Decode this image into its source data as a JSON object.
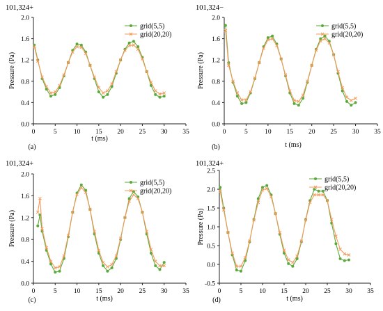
{
  "colors": {
    "green": "#5aaa3a",
    "orange": "#f39a5a"
  },
  "chart_data": [
    {
      "type": "line",
      "title": "101,324+",
      "panel_label": "(a)",
      "xlabel": "t (ms)",
      "ylabel": "Pressure (Pa)",
      "xlim": [
        0,
        35
      ],
      "ylim": [
        0.0,
        2.0
      ],
      "xticks": [
        "0",
        "5",
        "10",
        "15",
        "20",
        "25",
        "30",
        "35"
      ],
      "yticks": [
        "0.0",
        "0.4",
        "0.8",
        "1.2",
        "1.6",
        "2.0"
      ],
      "legend_position": "top-right",
      "series": [
        {
          "name": "grid(5,5)",
          "color": "#5aaa3a",
          "marker": "dot",
          "x": [
            0.2,
            1,
            2,
            3,
            4,
            5,
            6,
            7,
            8,
            9,
            10,
            11,
            12,
            13,
            14,
            15,
            16,
            17,
            18,
            19,
            20,
            21,
            22,
            23,
            24,
            25,
            26,
            27,
            28,
            29,
            30
          ],
          "y": [
            1.48,
            1.2,
            0.85,
            0.65,
            0.52,
            0.55,
            0.68,
            0.9,
            1.15,
            1.38,
            1.5,
            1.48,
            1.35,
            1.1,
            0.85,
            0.6,
            0.5,
            0.55,
            0.7,
            0.95,
            1.2,
            1.4,
            1.52,
            1.55,
            1.45,
            1.25,
            0.98,
            0.72,
            0.55,
            0.5,
            0.52
          ]
        },
        {
          "name": "grid(20,20)",
          "color": "#f39a5a",
          "marker": "x",
          "x": [
            0.2,
            1,
            2,
            3,
            4,
            5,
            6,
            7,
            8,
            9,
            10,
            11,
            12,
            13,
            14,
            15,
            16,
            17,
            18,
            19,
            20,
            21,
            22,
            23,
            24,
            25,
            26,
            27,
            28,
            29,
            30
          ],
          "y": [
            1.45,
            1.18,
            0.88,
            0.7,
            0.58,
            0.6,
            0.72,
            0.92,
            1.15,
            1.35,
            1.45,
            1.44,
            1.32,
            1.1,
            0.88,
            0.68,
            0.58,
            0.62,
            0.75,
            0.98,
            1.2,
            1.38,
            1.47,
            1.48,
            1.4,
            1.22,
            0.98,
            0.78,
            0.62,
            0.56,
            0.58
          ]
        }
      ]
    },
    {
      "type": "line",
      "title": "101,324−",
      "panel_label": "(b)",
      "xlabel": "t (ms)",
      "ylabel": "Pressure (Pa)",
      "xlim": [
        0,
        35
      ],
      "ylim": [
        0.0,
        2.0
      ],
      "xticks": [
        "0",
        "5",
        "10",
        "15",
        "20",
        "25",
        "30",
        "35"
      ],
      "yticks": [
        "0.0",
        "0.4",
        "0.8",
        "1.2",
        "1.6",
        "2.0"
      ],
      "legend_position": "top-right",
      "series": [
        {
          "name": "grid(5,5)",
          "color": "#5aaa3a",
          "marker": "dot",
          "x": [
            0.3,
            1,
            2,
            3,
            4,
            5,
            6,
            7,
            8,
            9,
            10,
            11,
            12,
            13,
            14,
            15,
            16,
            17,
            18,
            19,
            20,
            21,
            22,
            23,
            24,
            25,
            26,
            27,
            28,
            29,
            30
          ],
          "y": [
            1.85,
            1.15,
            0.78,
            0.52,
            0.38,
            0.4,
            0.58,
            0.85,
            1.15,
            1.45,
            1.62,
            1.65,
            1.5,
            1.22,
            0.9,
            0.58,
            0.38,
            0.35,
            0.48,
            0.78,
            1.1,
            1.4,
            1.6,
            1.65,
            1.55,
            1.3,
            0.95,
            0.62,
            0.42,
            0.35,
            0.4
          ]
        },
        {
          "name": "grid(20,20)",
          "color": "#f39a5a",
          "marker": "x",
          "x": [
            0.3,
            1,
            2,
            3,
            4,
            5,
            6,
            7,
            8,
            9,
            10,
            11,
            12,
            13,
            14,
            15,
            16,
            17,
            18,
            19,
            20,
            21,
            22,
            23,
            24,
            25,
            26,
            27,
            28,
            29,
            30
          ],
          "y": [
            1.75,
            1.1,
            0.8,
            0.58,
            0.45,
            0.45,
            0.6,
            0.86,
            1.15,
            1.42,
            1.58,
            1.6,
            1.47,
            1.22,
            0.92,
            0.62,
            0.44,
            0.42,
            0.54,
            0.8,
            1.1,
            1.38,
            1.56,
            1.6,
            1.52,
            1.3,
            0.98,
            0.68,
            0.5,
            0.44,
            0.48
          ]
        }
      ]
    },
    {
      "type": "line",
      "title": "101,324+",
      "panel_label": "(c)",
      "xlabel": "t (ms)",
      "ylabel": "Pressure (Pa)",
      "xlim": [
        0,
        35
      ],
      "ylim": [
        0.0,
        2.0
      ],
      "xticks": [
        "0",
        "5",
        "10",
        "15",
        "20",
        "25",
        "30",
        "35"
      ],
      "yticks": [
        "0.0",
        "0.4",
        "0.8",
        "1.2",
        "1.6",
        "2.0"
      ],
      "legend_position": "top-right",
      "series": [
        {
          "name": "grid(5,5)",
          "color": "#5aaa3a",
          "marker": "dot",
          "x": [
            1,
            1.5,
            2,
            3,
            4,
            5,
            6,
            7,
            8,
            9,
            10,
            11,
            12,
            13,
            14,
            15,
            16,
            17,
            18,
            19,
            20,
            21,
            22,
            23,
            24,
            25,
            26,
            27,
            28,
            29,
            30
          ],
          "y": [
            1.05,
            1.25,
            0.95,
            0.6,
            0.35,
            0.2,
            0.22,
            0.45,
            0.85,
            1.3,
            1.65,
            1.8,
            1.7,
            1.35,
            0.9,
            0.55,
            0.32,
            0.22,
            0.28,
            0.45,
            0.8,
            1.2,
            1.55,
            1.68,
            1.58,
            1.3,
            0.9,
            0.55,
            0.32,
            0.25,
            0.38
          ]
        },
        {
          "name": "grid(20,20)",
          "color": "#f39a5a",
          "marker": "x",
          "x": [
            1,
            1.5,
            2,
            3,
            4,
            5,
            6,
            7,
            8,
            9,
            10,
            11,
            12,
            13,
            14,
            15,
            16,
            17,
            18,
            19,
            20,
            21,
            22,
            23,
            24,
            25,
            26,
            27,
            28,
            29,
            30
          ],
          "y": [
            1.3,
            1.55,
            1.0,
            0.65,
            0.4,
            0.28,
            0.3,
            0.5,
            0.88,
            1.3,
            1.62,
            1.75,
            1.66,
            1.35,
            0.95,
            0.6,
            0.38,
            0.3,
            0.34,
            0.5,
            0.82,
            1.2,
            1.5,
            1.62,
            1.55,
            1.3,
            0.95,
            0.62,
            0.4,
            0.32,
            0.32
          ]
        }
      ]
    },
    {
      "type": "line",
      "title": "101,324+",
      "panel_label": "(d)",
      "xlabel": "t (ms)",
      "ylabel": "Pressure (Pa)",
      "xlim": [
        0,
        35
      ],
      "ylim": [
        -0.5,
        2.5
      ],
      "xticks": [
        "0",
        "5",
        "10",
        "15",
        "20",
        "25",
        "30",
        "35"
      ],
      "yticks": [
        "-0.5",
        "0.0",
        "0.5",
        "1.0",
        "1.5",
        "2.0",
        "2.5"
      ],
      "legend_position": "top-right",
      "series": [
        {
          "name": "grid(5,5)",
          "color": "#5aaa3a",
          "marker": "dot",
          "x": [
            0.2,
            1,
            2,
            3,
            4,
            5,
            6,
            7,
            8,
            9,
            10,
            11,
            12,
            13,
            14,
            15,
            16,
            17,
            18,
            19,
            20,
            21,
            22,
            23,
            24,
            25,
            26,
            27,
            28,
            29,
            30
          ],
          "y": [
            2.05,
            1.5,
            0.85,
            0.25,
            -0.15,
            -0.18,
            0.1,
            0.6,
            1.2,
            1.75,
            2.05,
            2.1,
            1.85,
            1.35,
            0.8,
            0.3,
            0.02,
            -0.05,
            0.15,
            0.6,
            1.2,
            1.7,
            2.0,
            1.95,
            1.95,
            1.7,
            1.1,
            0.55,
            0.15,
            0.1,
            0.12
          ]
        },
        {
          "name": "grid(20,20)",
          "color": "#f39a5a",
          "marker": "x",
          "x": [
            0.2,
            1,
            2,
            3,
            4,
            5,
            6,
            7,
            8,
            9,
            10,
            11,
            12,
            13,
            14,
            15,
            16,
            17,
            18,
            19,
            20,
            21,
            22,
            23,
            24,
            25,
            26,
            27,
            28,
            29,
            30
          ],
          "y": [
            1.95,
            1.45,
            0.85,
            0.3,
            -0.05,
            -0.05,
            0.18,
            0.62,
            1.18,
            1.65,
            1.98,
            2.02,
            1.8,
            1.35,
            0.85,
            0.38,
            0.12,
            0.05,
            0.22,
            0.62,
            1.18,
            1.65,
            1.85,
            1.85,
            1.85,
            1.7,
            1.2,
            0.75,
            0.4,
            0.28,
            0.25
          ]
        }
      ]
    }
  ]
}
